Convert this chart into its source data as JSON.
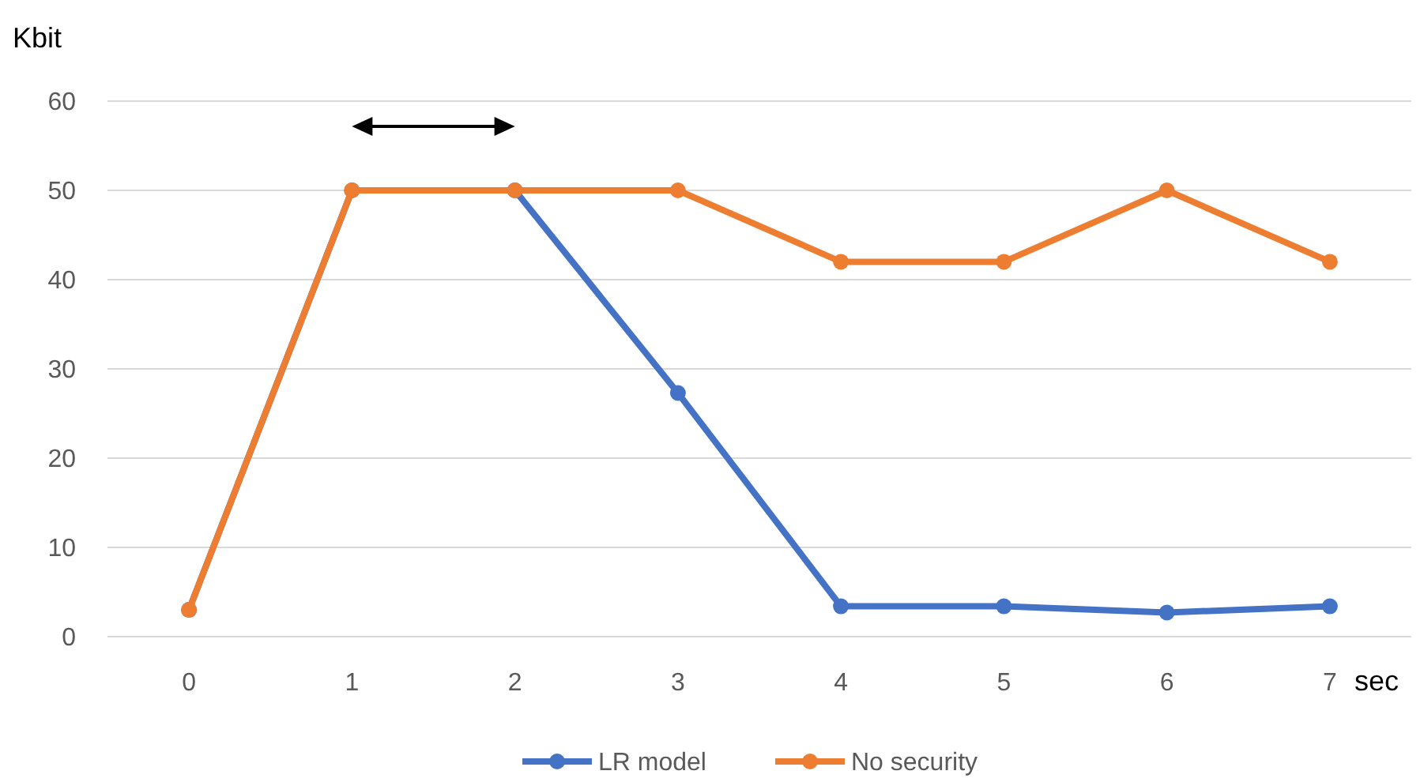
{
  "chart_data": {
    "type": "line",
    "xlabel": "sec",
    "ylabel": "Kbit",
    "categories": [
      "0",
      "1",
      "2",
      "3",
      "4",
      "5",
      "6",
      "7"
    ],
    "series": [
      {
        "name": "LR model",
        "color": "#4472c4",
        "values": [
          3,
          50,
          50,
          27.3,
          3.4,
          3.4,
          2.7,
          3.4
        ]
      },
      {
        "name": "No security",
        "color": "#ed7d31",
        "values": [
          3,
          50,
          50,
          50,
          42,
          42,
          50,
          42
        ]
      }
    ],
    "ylim": [
      0,
      60
    ],
    "yticks": [
      0,
      10,
      20,
      30,
      40,
      50,
      60
    ],
    "grid": "y",
    "legend": "bottom",
    "marker": "circle",
    "line_style": "solid"
  }
}
